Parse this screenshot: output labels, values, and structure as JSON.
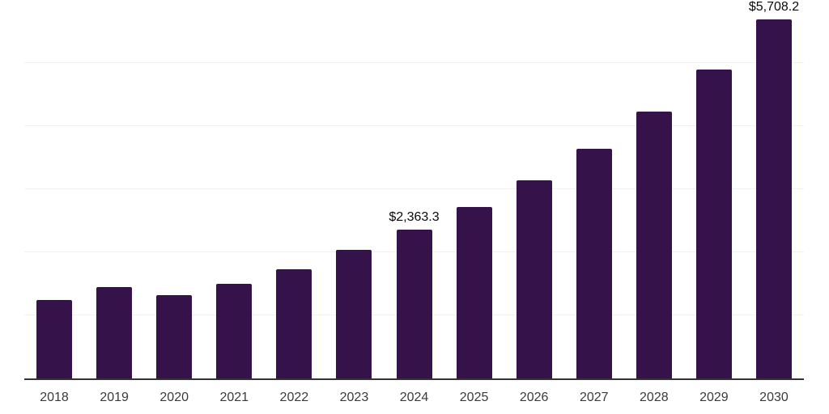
{
  "chart": {
    "background_color": "#ffffff",
    "bar_color": "#351249",
    "axis_color": "#333333",
    "gridline_color": "#f1f1f1",
    "tick_label_color": "#3a3a3a",
    "value_label_color": "#0a0a0a"
  },
  "chart_data": {
    "type": "bar",
    "title": "",
    "xlabel": "",
    "ylabel": "",
    "categories": [
      "2018",
      "2019",
      "2020",
      "2021",
      "2022",
      "2023",
      "2024",
      "2025",
      "2026",
      "2027",
      "2028",
      "2029",
      "2030"
    ],
    "values": [
      1250,
      1445,
      1317,
      1505,
      1736,
      2043,
      2363.3,
      2720,
      3141,
      3639,
      4226,
      4903,
      5708.2
    ],
    "data_labels": [
      null,
      null,
      null,
      null,
      null,
      null,
      "$2,363.3",
      null,
      null,
      null,
      null,
      null,
      "$5,708.2"
    ],
    "ylim": [
      0,
      6000
    ],
    "gridline_count": 6,
    "grid": "horizontal",
    "legend": "none"
  }
}
